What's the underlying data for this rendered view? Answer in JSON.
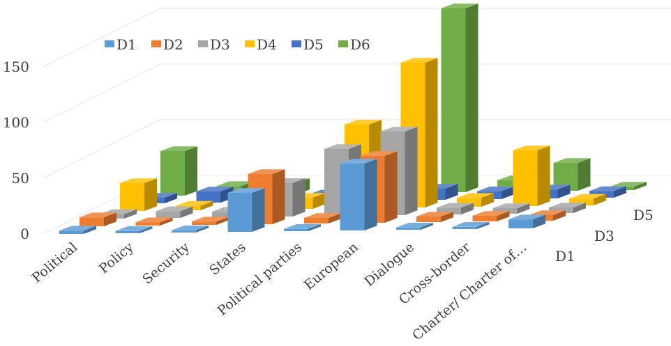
{
  "chart_data": {
    "type": "bar",
    "variant": "3d-column",
    "title": "",
    "categories": [
      "Political",
      "Policy",
      "Security",
      "States",
      "Political parties",
      "European",
      "Dialogue",
      "Cross-border",
      "Charter/ Charter of…"
    ],
    "series": [
      {
        "name": "D1",
        "color": "#5b9bd5",
        "values": [
          3,
          2,
          2,
          35,
          2,
          60,
          2,
          2,
          8
        ]
      },
      {
        "name": "D2",
        "color": "#ed7d31",
        "values": [
          8,
          3,
          3,
          45,
          5,
          60,
          5,
          5,
          5
        ]
      },
      {
        "name": "D3",
        "color": "#a5a5a5",
        "values": [
          4,
          6,
          5,
          30,
          60,
          75,
          6,
          5,
          5
        ]
      },
      {
        "name": "D4",
        "color": "#ffc000",
        "values": [
          25,
          4,
          6,
          10,
          75,
          130,
          8,
          50,
          6
        ]
      },
      {
        "name": "D5",
        "color": "#4472c4",
        "values": [
          5,
          10,
          9,
          6,
          5,
          10,
          7,
          8,
          6
        ]
      },
      {
        "name": "D6",
        "color": "#70ad47",
        "values": [
          40,
          8,
          10,
          12,
          40,
          165,
          10,
          25,
          3
        ]
      }
    ],
    "y_ticks": [
      "0",
      "50",
      "100",
      "150"
    ],
    "ylim": [
      0,
      200
    ],
    "depth_labels": [
      "D1",
      "D3",
      "D5"
    ],
    "legend_position": "top-left",
    "grid": true
  }
}
